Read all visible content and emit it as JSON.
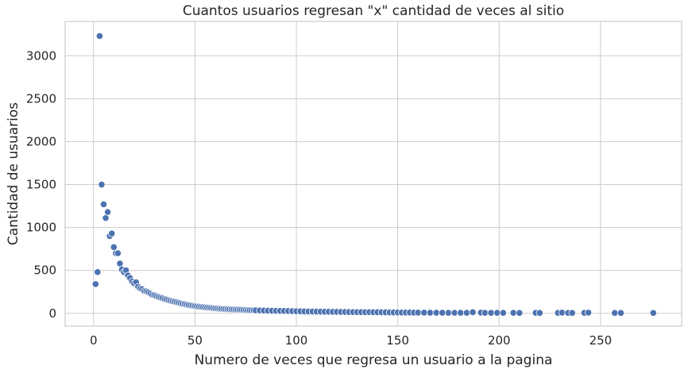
{
  "chart_data": {
    "type": "scatter",
    "title": "Cuantos usuarios regresan \"x\" cantidad de veces al sitio",
    "xlabel": "Numero de veces que regresa un usuario a la pagina",
    "ylabel": "Cantidad de usuarios",
    "xlim": [
      -14,
      290
    ],
    "ylim": [
      -150,
      3400
    ],
    "xticks": [
      0,
      50,
      100,
      150,
      200,
      250
    ],
    "yticks": [
      0,
      500,
      1000,
      1500,
      2000,
      2500,
      3000
    ],
    "grid": true,
    "color": "#4c72b0",
    "x": [
      1,
      2,
      3,
      4,
      5,
      6,
      7,
      8,
      9,
      10,
      11,
      12,
      13,
      14,
      15,
      16,
      17,
      18,
      19,
      20,
      21,
      22,
      23,
      24,
      25,
      26,
      27,
      28,
      29,
      30,
      31,
      32,
      33,
      34,
      35,
      36,
      37,
      38,
      39,
      40,
      41,
      42,
      43,
      44,
      45,
      46,
      47,
      48,
      49,
      50,
      51,
      52,
      53,
      54,
      55,
      56,
      57,
      58,
      59,
      60,
      61,
      62,
      63,
      64,
      65,
      66,
      67,
      68,
      69,
      70,
      71,
      72,
      73,
      74,
      75,
      76,
      77,
      78,
      79,
      80,
      82,
      84,
      86,
      88,
      90,
      92,
      94,
      96,
      98,
      100,
      102,
      104,
      106,
      108,
      110,
      112,
      114,
      116,
      118,
      120,
      122,
      124,
      126,
      128,
      130,
      132,
      134,
      136,
      138,
      140,
      142,
      144,
      146,
      148,
      150,
      152,
      154,
      156,
      158,
      160,
      163,
      166,
      169,
      172,
      175,
      178,
      181,
      184,
      187,
      191,
      193,
      196,
      199,
      202,
      207,
      210,
      218,
      220,
      229,
      231,
      234,
      236,
      242,
      244,
      257,
      260,
      276
    ],
    "y": [
      340,
      480,
      3230,
      1500,
      1270,
      1110,
      1180,
      900,
      930,
      770,
      700,
      700,
      580,
      510,
      480,
      500,
      440,
      410,
      370,
      350,
      360,
      310,
      290,
      280,
      260,
      255,
      245,
      230,
      215,
      210,
      200,
      190,
      182,
      175,
      165,
      160,
      152,
      145,
      140,
      135,
      128,
      122,
      116,
      110,
      106,
      100,
      96,
      92,
      88,
      84,
      80,
      78,
      75,
      72,
      70,
      68,
      65,
      63,
      60,
      58,
      56,
      54,
      52,
      50,
      49,
      48,
      47,
      46,
      45,
      44,
      43,
      42,
      41,
      40,
      39,
      38,
      37,
      36,
      35,
      34,
      33,
      32,
      31,
      30,
      29,
      28,
      27,
      26,
      25,
      24,
      23,
      22,
      21,
      20,
      19,
      19,
      18,
      18,
      17,
      17,
      16,
      16,
      15,
      15,
      14,
      14,
      13,
      13,
      12,
      12,
      11,
      11,
      10,
      10,
      10,
      9,
      9,
      9,
      8,
      8,
      8,
      7,
      7,
      7,
      6,
      6,
      6,
      6,
      12,
      8,
      5,
      5,
      5,
      5,
      5,
      4,
      5,
      4,
      5,
      8,
      4,
      4,
      5,
      8,
      4,
      4,
      4
    ]
  }
}
